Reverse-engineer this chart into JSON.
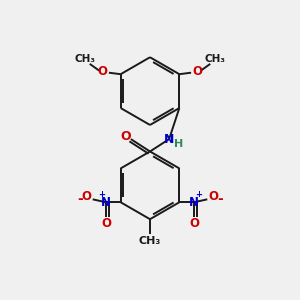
{
  "background_color": "#f0f0f0",
  "bond_color": "#1a1a1a",
  "o_color": "#cc0000",
  "n_color": "#0000cc",
  "h_color": "#2e8b57",
  "c_color": "#1a1a1a",
  "figsize": [
    3.0,
    3.0
  ],
  "dpi": 100,
  "xlim": [
    0,
    10
  ],
  "ylim": [
    0,
    10
  ]
}
